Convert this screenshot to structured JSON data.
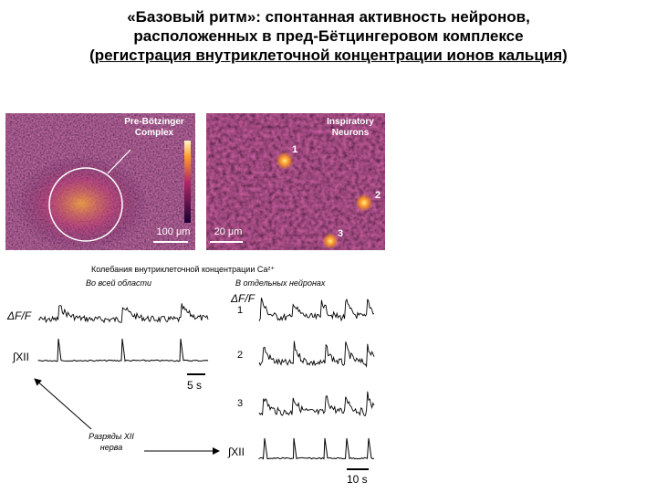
{
  "title": {
    "line1": "«Базовый ритм»: спонтанная активность нейронов,",
    "line2": "расположенных  в пред-Бётцингеровом комплексе",
    "line3": "(регистрация внутриклеточной концентрации ионов кальция)"
  },
  "left_image": {
    "label_line1": "Pre-Bötzinger",
    "label_line2": "Complex",
    "scale": "100 μm"
  },
  "right_image": {
    "label_line1": "Inspiratory",
    "label_line2": "Neurons",
    "neuron_labels": [
      "1",
      "2",
      "3"
    ],
    "scale": "20 μm"
  },
  "colors": {
    "dark": "#1a0033",
    "mid": "#7a1a78",
    "bright": "#ff9a2a",
    "hot": "#fff08a"
  },
  "caption": "Колебания внутриклеточной концентрации Ca²⁺",
  "left_panel": {
    "heading": "Во всей области",
    "trace1_label": "ΔF/F",
    "trace2_label": "∫XII",
    "scale": "5 s"
  },
  "right_panel": {
    "heading": "В отдельных нейронах",
    "trace_header": "ΔF/F",
    "trace_labels": [
      "1",
      "2",
      "3"
    ],
    "bottom_label": "∫XII",
    "scale": "10 s"
  },
  "annotation": {
    "line1": "Разряды XII",
    "line2": "нерва"
  }
}
